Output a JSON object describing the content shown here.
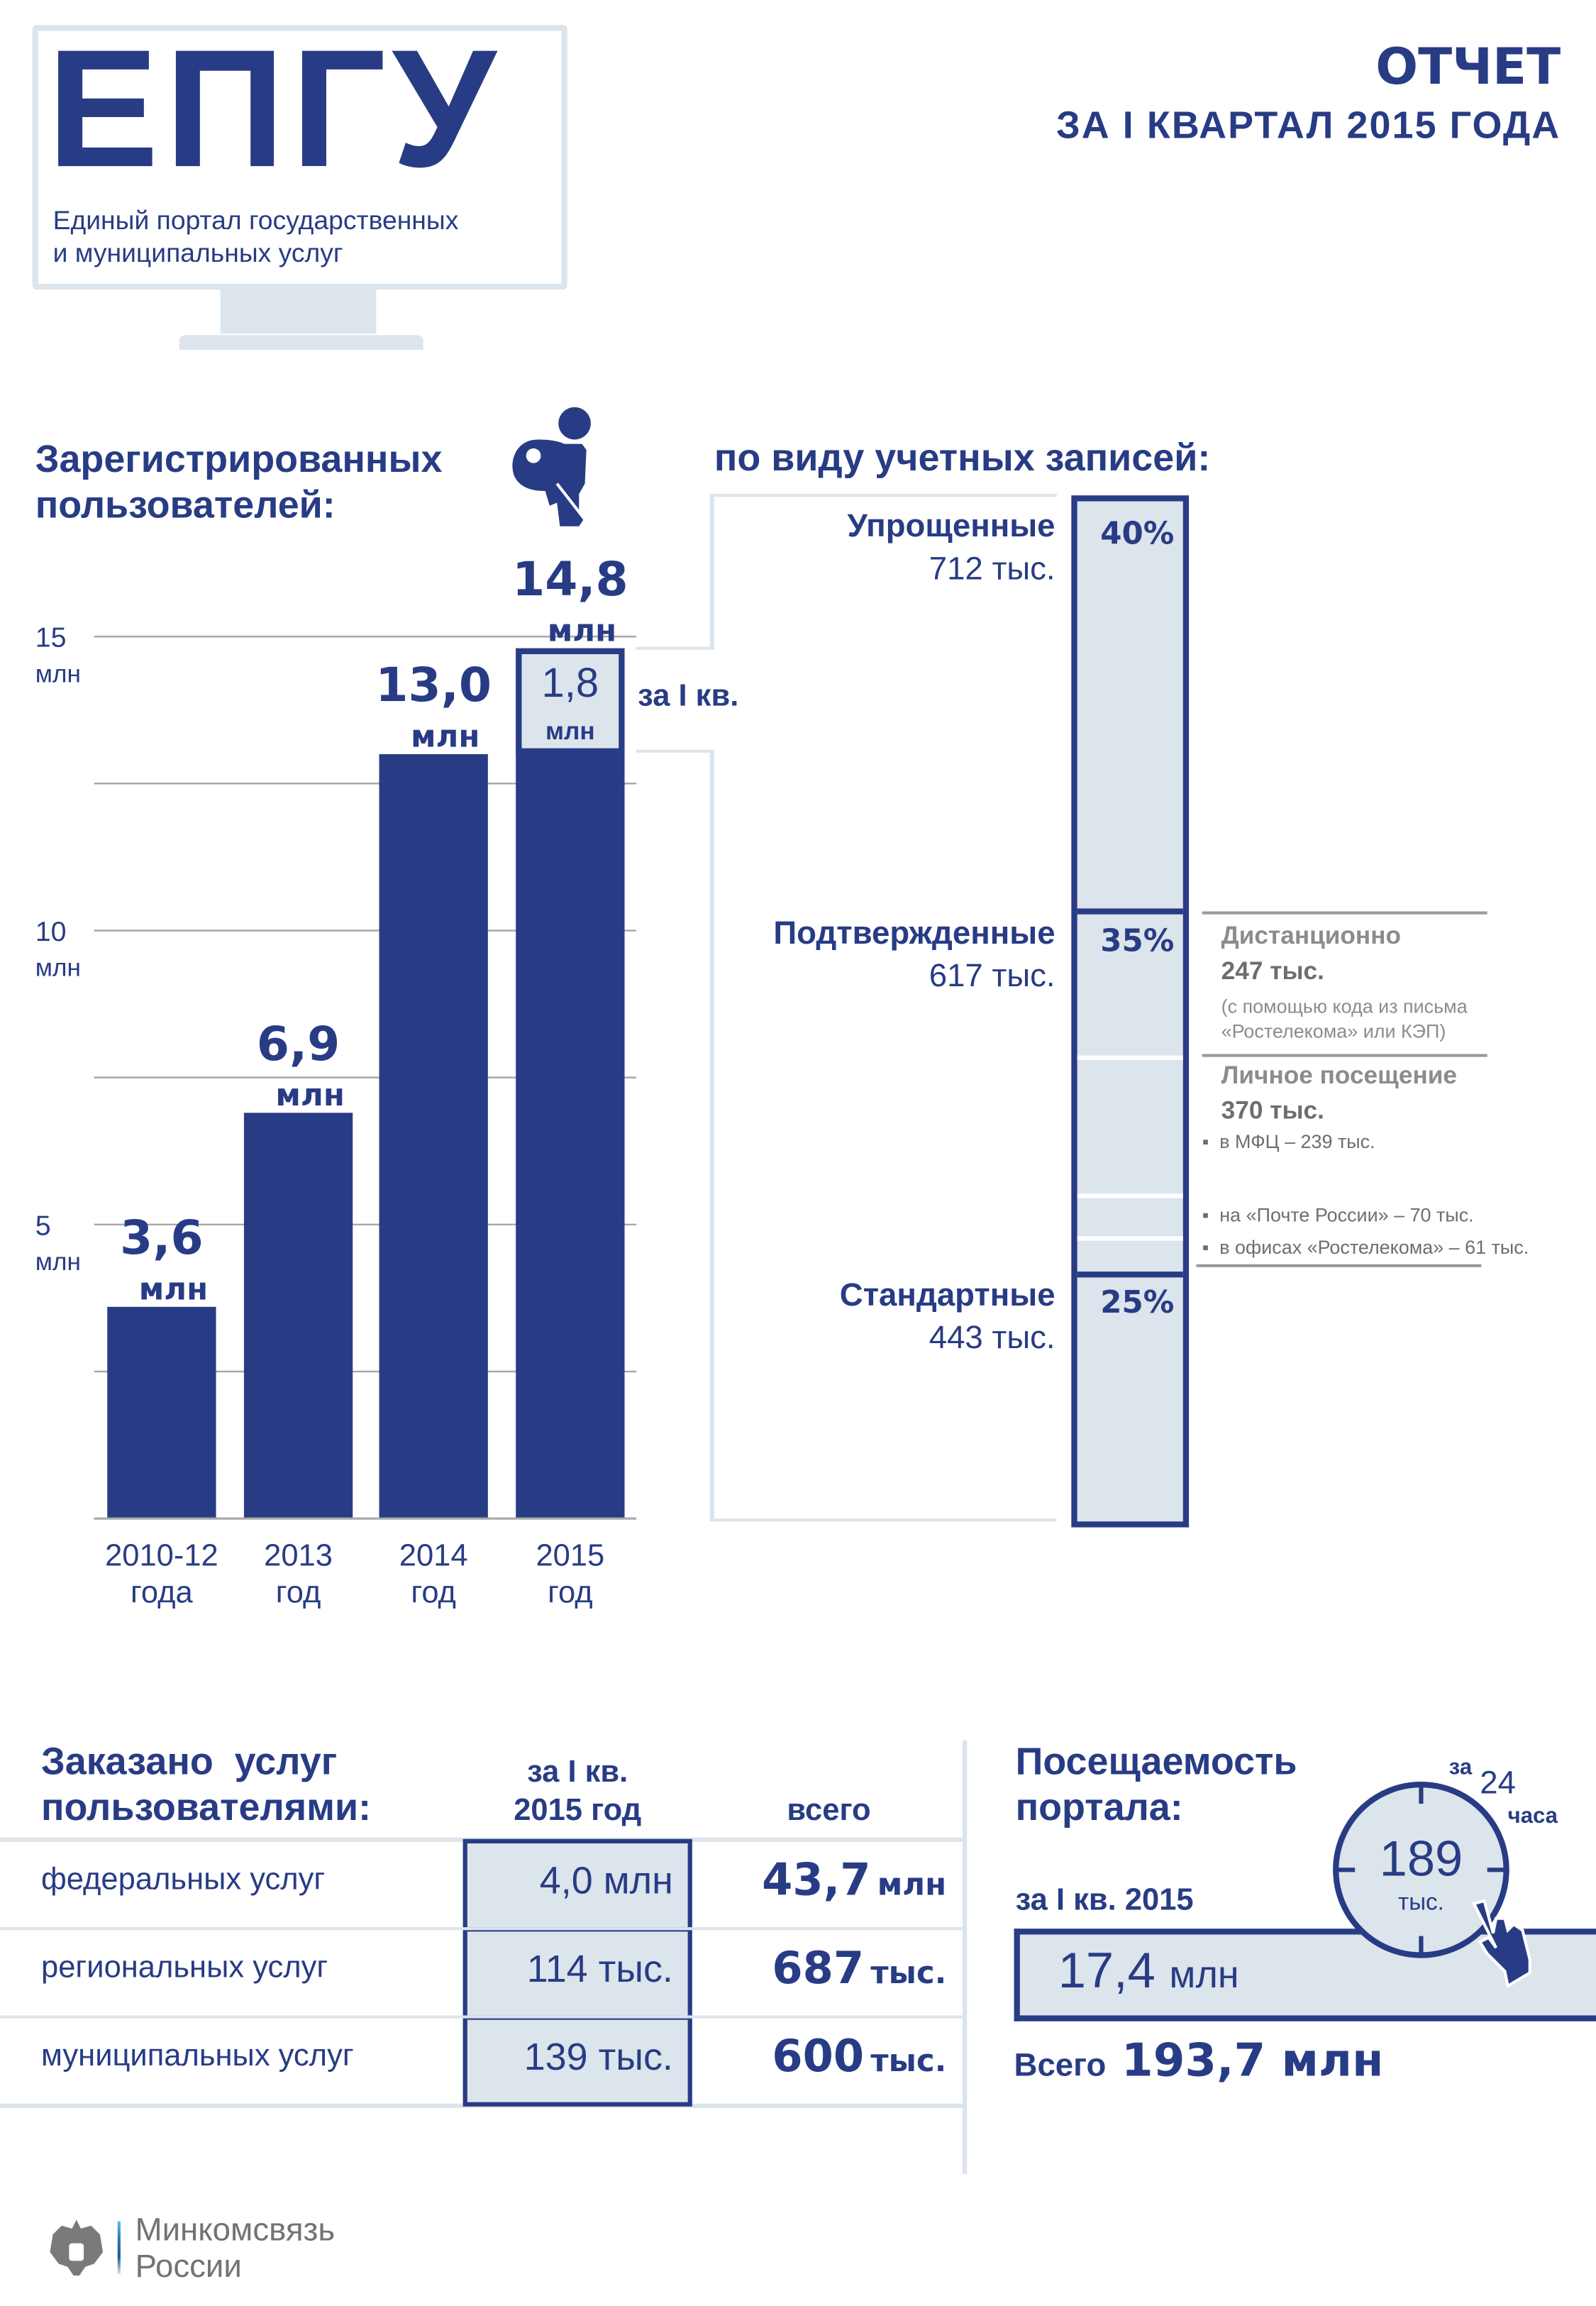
{
  "header": {
    "logo_text": "ЕПГУ",
    "logo_subtitle_line1": "Единый портал государственных",
    "logo_subtitle_line2": "и муниципальных услуг",
    "report_title": "ОТЧЕТ",
    "report_period": "ЗА I КВАРТАЛ 2015 ГОДА"
  },
  "registered": {
    "title_line1": "Зарегистрированных",
    "title_line2": "пользователей:",
    "icon": "user-key-icon",
    "q1_value": "1,8",
    "q1_unit": "млн",
    "q1_label": "за I кв."
  },
  "chart_data": {
    "type": "bar",
    "categories": [
      "2010-12 года",
      "2013 год",
      "2014 год",
      "2015 год"
    ],
    "category_lines": [
      [
        "2010-12",
        "года"
      ],
      [
        "2013",
        "год"
      ],
      [
        "2014",
        "год"
      ],
      [
        "2015",
        "год"
      ]
    ],
    "values": [
      3.6,
      6.9,
      13.0,
      14.8
    ],
    "data_labels": [
      "3,6",
      "6,9",
      "13,0",
      "14,8"
    ],
    "data_label_unit": "млн",
    "highlight": {
      "category": "2015 год",
      "value": 1.8,
      "label": "за I кв."
    },
    "ylim": [
      0,
      15
    ],
    "yticks": [
      {
        "value": 15,
        "label": "15",
        "unit": "млн"
      },
      {
        "value": 10,
        "label": "10",
        "unit": "млн"
      },
      {
        "value": 5,
        "label": "5",
        "unit": "млн"
      }
    ],
    "grid_step": 2.5,
    "grid": true,
    "color": "#283c85",
    "highlight_color": "#dce4ec"
  },
  "accounts": {
    "title": "по виду учетных записей:",
    "segments": [
      {
        "name": "Упрощенные",
        "value": "712 тыс.",
        "percent": "40%",
        "share": 40
      },
      {
        "name": "Подтвержденные",
        "value": "617 тыс.",
        "percent": "35%",
        "share": 35
      },
      {
        "name": "Стандартные",
        "value": "443 тыс.",
        "percent": "25%",
        "share": 25
      }
    ],
    "details": {
      "remote_title": "Дистанционно",
      "remote_value": "247 тыс.",
      "remote_note_line1": "(с помощью кода из письма",
      "remote_note_line2": "«Ростелекома» или КЭП)",
      "personal_title": "Личное посещение",
      "personal_value": "370 тыс.",
      "bullets": [
        "в МФЦ – 239 тыс.",
        "на «Почте России» – 70 тыс.",
        "в офисах «Ростелекома» – 61 тыс."
      ]
    }
  },
  "services": {
    "title_line1": "Заказано  услуг",
    "title_line2": "пользователями:",
    "col_q1_line1": "за I кв.",
    "col_q1_line2": "2015 год",
    "col_total": "всего",
    "rows": [
      {
        "label": "федеральных услуг",
        "q1": "4,0 млн",
        "total_num": "43,7",
        "total_unit": "млн"
      },
      {
        "label": "региональных услуг",
        "q1": "114 тыс.",
        "total_num": "687",
        "total_unit": "тыс."
      },
      {
        "label": "муниципальных услуг",
        "q1": "139 тыс.",
        "total_num": "600",
        "total_unit": "тыс."
      }
    ]
  },
  "traffic": {
    "title_line1": "Посещаемость",
    "title_line2": "портала:",
    "clock_prefix": "за",
    "clock_hours": "24",
    "clock_suffix": "часа",
    "daily_value": "189",
    "daily_unit": "тыс.",
    "q1_label": "за I кв. 2015",
    "q1_value": "17,4",
    "q1_unit": "млн",
    "total_label": "Всего",
    "total_value": "193,7 млн"
  },
  "footer": {
    "org_line1": "Минкомсвязь",
    "org_line2": "России",
    "emblem": "coat-of-arms-icon"
  }
}
